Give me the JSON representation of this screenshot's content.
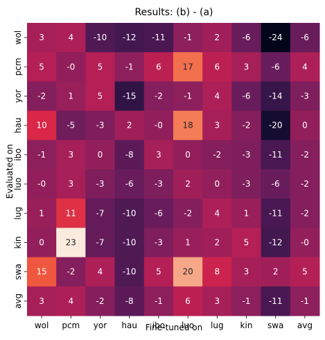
{
  "chart_data": {
    "type": "heatmap",
    "title": "Results: (b) - (a)",
    "xlabel": "Fine-tuned on",
    "ylabel": "Evaluated on",
    "x_categories": [
      "wol",
      "pcm",
      "yor",
      "hau",
      "ibo",
      "luo",
      "lug",
      "kin",
      "swa",
      "avg"
    ],
    "y_categories": [
      "wol",
      "pcm",
      "yor",
      "hau",
      "ibo",
      "luo",
      "lug",
      "kin",
      "swa",
      "avg"
    ],
    "values": [
      [
        "3",
        "4",
        "-10",
        "-12",
        "-11",
        "-1",
        "2",
        "-6",
        "-24",
        "-6"
      ],
      [
        "5",
        "-0",
        "5",
        "-1",
        "6",
        "17",
        "6",
        "3",
        "-6",
        "4"
      ],
      [
        "-2",
        "1",
        "5",
        "-15",
        "-2",
        "-1",
        "4",
        "-6",
        "-14",
        "-3"
      ],
      [
        "10",
        "-5",
        "-3",
        "2",
        "-0",
        "18",
        "3",
        "-2",
        "-20",
        "0"
      ],
      [
        "-1",
        "3",
        "0",
        "-8",
        "3",
        "0",
        "-2",
        "-3",
        "-11",
        "-2"
      ],
      [
        "-0",
        "3",
        "-3",
        "-6",
        "-3",
        "2",
        "0",
        "-3",
        "-6",
        "-2"
      ],
      [
        "1",
        "11",
        "-7",
        "-10",
        "-6",
        "-2",
        "4",
        "1",
        "-11",
        "-2"
      ],
      [
        "0",
        "23",
        "-7",
        "-10",
        "-3",
        "1",
        "2",
        "5",
        "-12",
        "-0"
      ],
      [
        "15",
        "-2",
        "4",
        "-10",
        "5",
        "20",
        "8",
        "3",
        "2",
        "5"
      ],
      [
        "3",
        "4",
        "-2",
        "-8",
        "-1",
        "6",
        "3",
        "-1",
        "-11",
        "-1"
      ]
    ],
    "colormap": "rocket",
    "vmin": -24,
    "vmax": 23,
    "colorbar": false,
    "grid": false
  }
}
